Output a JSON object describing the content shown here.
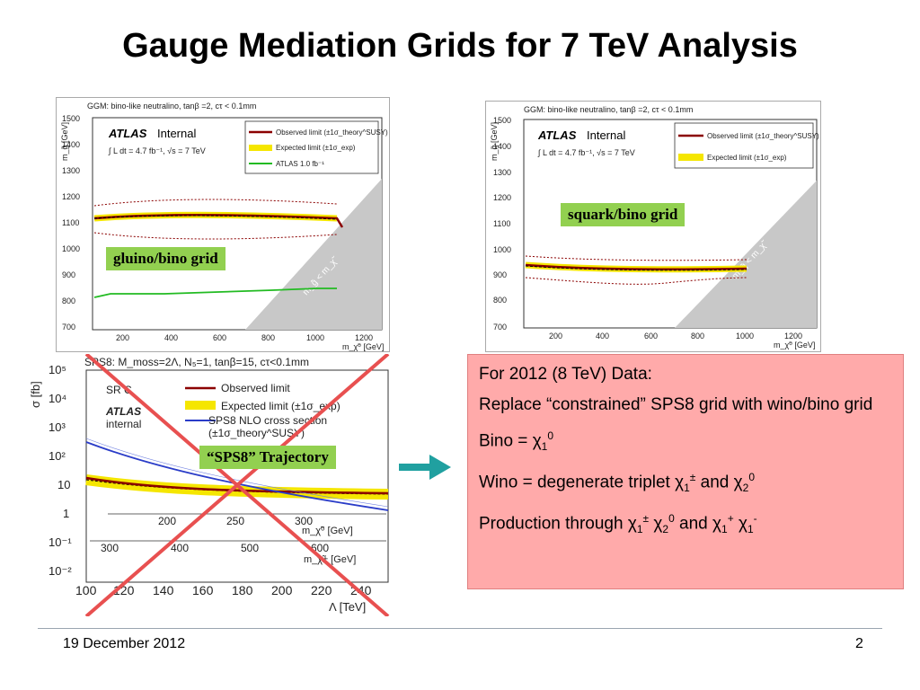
{
  "slide": {
    "title": "Gauge Mediation Grids for 7 TeV Analysis",
    "footer_date": "19 December 2012",
    "page_number": "2"
  },
  "plot_gluino": {
    "header": "GGM: bino-like neutralino, tanβ =2, cτ < 0.1mm",
    "atlas": "ATLAS",
    "internal": "Internal",
    "lumi": "∫ L dt = 4.7 fb⁻¹, √s = 7 TeV",
    "ylabel": "m_g̃ [GeV]",
    "xlabel": "m_χ̃⁰ [GeV]",
    "yticks": [
      "1500",
      "1400",
      "1300",
      "1200",
      "1100",
      "1000",
      "900",
      "800",
      "700"
    ],
    "xticks": [
      "200",
      "400",
      "600",
      "800",
      "1000",
      "1200"
    ],
    "legend": [
      "Observed limit (±1σ_theory^SUSY)",
      "Expected limit (±1σ_exp)",
      "ATLAS 1.0 fb⁻¹"
    ],
    "diag_label": "m_g̃ < m_χ̃",
    "grid_label": "gluino/bino grid",
    "colors": {
      "observed": "#8b0000",
      "expected": "#f5e600",
      "atlas1fb": "#22bb22",
      "excluded": "#c8c8c8"
    }
  },
  "plot_squark": {
    "header": "GGM: bino-like neutralino, tanβ =2, cτ < 0.1mm",
    "atlas": "ATLAS",
    "internal": "Internal",
    "lumi": "∫ L dt = 4.7 fb⁻¹, √s = 7 TeV",
    "ylabel": "m_q̃ [GeV]",
    "xlabel": "m_χ̃⁰ [GeV]",
    "yticks": [
      "1500",
      "1400",
      "1300",
      "1200",
      "1100",
      "1000",
      "900",
      "800",
      "700"
    ],
    "xticks": [
      "200",
      "400",
      "600",
      "800",
      "1000",
      "1200"
    ],
    "legend": [
      "Observed limit (±1σ_theory^SUSY)",
      "Expected limit (±1σ_exp)"
    ],
    "diag_label": "m_q̃ < m_χ̃",
    "grid_label": "squark/bino grid"
  },
  "plot_sps8": {
    "header": "SPS8: M_moss=2Λ, N₅=1, tanβ=15, cτ<0.1mm",
    "sr": "SR C",
    "atlas": "ATLAS",
    "internal": "internal",
    "ylabel": "σ [fb]",
    "yticks": [
      "10⁵",
      "10⁴",
      "10³",
      "10²",
      "10",
      "1",
      "10⁻¹",
      "10⁻²"
    ],
    "xticks": [
      "100",
      "120",
      "140",
      "160",
      "180",
      "200",
      "220",
      "240"
    ],
    "xlabel": "Λ [TeV]",
    "axis2_ticks": [
      "200",
      "250",
      "300"
    ],
    "axis2_label": "m_χ̃⁰ [GeV]",
    "axis3_ticks": [
      "300",
      "400",
      "500",
      "600"
    ],
    "axis3_label": "m_χ̃± [GeV]",
    "legend": [
      "Observed limit",
      "Expected limit (±1σ_exp)",
      "SPS8 NLO cross section",
      "(±1σ_theory^SUSY)"
    ],
    "trajectory_label": "“SPS8” Trajectory"
  },
  "note": {
    "line1": "For 2012 (8 TeV) Data:",
    "line2": "Replace “constrained” SPS8 grid with wino/bino grid",
    "line3_prefix": "Bino = ",
    "line4_prefix": "Wino = degenerate triplet ",
    "line4_mid": " and ",
    "line5_prefix": "Production through ",
    "line5_mid": " and ",
    "chi": "χ",
    "sub1": "1",
    "sub2": "2",
    "sup0": "0",
    "suppm": "±",
    "supplus": "+",
    "supminus": "-"
  },
  "colors": {
    "note_bg": "#ffaaaa",
    "label_bg": "#92d050",
    "arrow": "#20a0a0",
    "cross": "#e85050"
  }
}
